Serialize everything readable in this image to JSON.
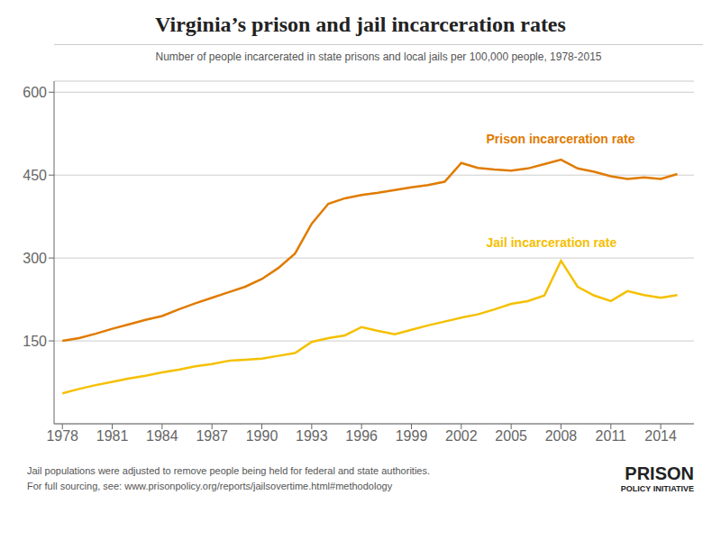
{
  "chart_data": {
    "type": "line",
    "title": "Virginia’s prison and jail incarceration rates",
    "subtitle": "Number of people incarcerated in state prisons and local jails per 100,000 people, 1978-2015",
    "footnotes": [
      "Jail populations were adjusted to remove people being held for federal and state authorities.",
      "For full sourcing, see: www.prisonpolicy.org/reports/jailsovertime.html#methodology"
    ],
    "logo": [
      "PRISON",
      "POLICY INITIATIVE"
    ],
    "x": [
      1978,
      1979,
      1980,
      1981,
      1982,
      1983,
      1984,
      1985,
      1986,
      1987,
      1988,
      1989,
      1990,
      1991,
      1992,
      1993,
      1994,
      1995,
      1996,
      1997,
      1998,
      1999,
      2000,
      2001,
      2002,
      2003,
      2004,
      2005,
      2006,
      2007,
      2008,
      2009,
      2010,
      2011,
      2012,
      2013,
      2014,
      2015
    ],
    "series": [
      {
        "name": "Prison incarceration rate",
        "color": "#e07b00",
        "values": [
          150,
          155,
          163,
          172,
          180,
          188,
          195,
          207,
          218,
          228,
          238,
          248,
          262,
          282,
          308,
          362,
          398,
          408,
          414,
          418,
          423,
          428,
          432,
          438,
          472,
          463,
          460,
          458,
          462,
          470,
          478,
          462,
          456,
          448,
          443,
          446,
          443,
          452
        ]
      },
      {
        "name": "Jail incarceration rate",
        "color": "#f5c000",
        "values": [
          55,
          63,
          70,
          76,
          82,
          87,
          93,
          98,
          104,
          108,
          114,
          116,
          118,
          123,
          128,
          148,
          155,
          160,
          175,
          168,
          162,
          170,
          178,
          185,
          192,
          198,
          207,
          217,
          222,
          232,
          295,
          248,
          232,
          222,
          240,
          233,
          228,
          233
        ]
      }
    ],
    "annotations": [
      {
        "text": "Prison incarceration rate",
        "x": 2003.5,
        "y": 508,
        "color": "#e07b00"
      },
      {
        "text": "Jail incarceration rate",
        "x": 2003.5,
        "y": 320,
        "color": "#f5c000"
      }
    ],
    "xlim": [
      1977.5,
      2016
    ],
    "xticks": [
      1978,
      1981,
      1984,
      1987,
      1990,
      1993,
      1996,
      1999,
      2002,
      2005,
      2008,
      2011,
      2014
    ],
    "ylim": [
      0,
      620
    ],
    "yticks": [
      150,
      300,
      450,
      600
    ],
    "grid": "y"
  }
}
